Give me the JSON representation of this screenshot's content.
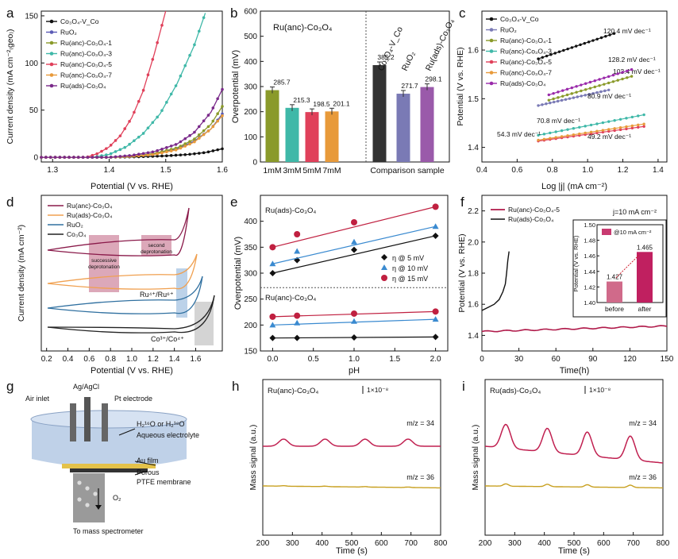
{
  "panel_labels": [
    "a",
    "b",
    "c",
    "d",
    "e",
    "f",
    "g",
    "h",
    "i"
  ],
  "chart_data": [
    {
      "panel": "a",
      "type": "line",
      "xlabel": "Potential (V vs. RHE)",
      "ylabel": "Current density (mA cm⁻²₍geo₎)",
      "xlim": [
        1.28,
        1.6
      ],
      "ylim": [
        -5,
        155
      ],
      "xticks": [
        1.3,
        1.4,
        1.5,
        1.6
      ],
      "yticks": [
        0,
        50,
        100,
        150
      ],
      "xtick_labels": [
        "1.3",
        "1.4",
        "1.5",
        "1.6"
      ],
      "ytick_labels": [
        "0",
        "50",
        "100",
        "150"
      ],
      "legend": [
        "Co₃O₄-V_Co",
        "RuO₂",
        "Ru(anc)-Co₃O₄-1",
        "Ru(anc)-Co₃O₄-3",
        "Ru(anc)-Co₃O₄-5",
        "Ru(anc)-Co₃O₄-7",
        "Ru(ads)-Co₃O₄"
      ],
      "series": [
        {
          "name": "Co₃O₄-V_Co",
          "color": "#111111",
          "x": [
            1.28,
            1.4,
            1.45,
            1.5,
            1.54,
            1.57,
            1.6
          ],
          "y": [
            0,
            0,
            0.5,
            1.5,
            3,
            5,
            9
          ]
        },
        {
          "name": "RuO₂",
          "color": "#5a5ab5",
          "x": [
            1.28,
            1.4,
            1.44,
            1.48,
            1.52,
            1.55,
            1.58,
            1.6
          ],
          "y": [
            0,
            0,
            1,
            4,
            9,
            17,
            30,
            46
          ]
        },
        {
          "name": "Ru(anc)-Co₃O₄-1",
          "color": "#8a9a2a",
          "x": [
            1.28,
            1.4,
            1.44,
            1.48,
            1.52,
            1.55,
            1.58,
            1.6
          ],
          "y": [
            0,
            0,
            1,
            4,
            10,
            19,
            35,
            54
          ]
        },
        {
          "name": "Ru(anc)-Co₃O₄-3",
          "color": "#3fb8a8",
          "x": [
            1.28,
            1.37,
            1.4,
            1.43,
            1.46,
            1.49,
            1.52,
            1.55,
            1.57
          ],
          "y": [
            0,
            0,
            3,
            11,
            25,
            46,
            78,
            118,
            153
          ]
        },
        {
          "name": "Ru(anc)-Co₃O₄-5",
          "color": "#e0405a",
          "x": [
            1.28,
            1.36,
            1.38,
            1.4,
            1.42,
            1.44,
            1.46,
            1.48,
            1.5
          ],
          "y": [
            0,
            0,
            4,
            11,
            23,
            42,
            70,
            110,
            155
          ]
        },
        {
          "name": "Ru(anc)-Co₃O₄-7",
          "color": "#e89a3a",
          "x": [
            1.28,
            1.4,
            1.44,
            1.48,
            1.52,
            1.55,
            1.58,
            1.6
          ],
          "y": [
            0,
            0,
            1,
            3,
            8,
            16,
            30,
            44
          ]
        },
        {
          "name": "Ru(ads)-Co₃O₄",
          "color": "#7a2a8a",
          "x": [
            1.28,
            1.4,
            1.44,
            1.48,
            1.52,
            1.55,
            1.58,
            1.6
          ],
          "y": [
            0,
            0,
            2,
            6,
            14,
            26,
            48,
            72
          ]
        }
      ]
    },
    {
      "panel": "b",
      "type": "bar",
      "title": "Ru(anc)-Co₃O₄",
      "ylabel": "Overpotential (mV)",
      "ylim": [
        0,
        600
      ],
      "yticks": [
        0,
        100,
        200,
        300,
        400,
        500,
        600
      ],
      "categories": [
        "1mM",
        "3mM",
        "5mM",
        "7mM",
        "Co₃O₄-V_Co",
        "RuO₂",
        "Ru(ads)-Co₃O₄"
      ],
      "values": [
        285.7,
        215.3,
        198.5,
        201.1,
        385.2,
        271.7,
        298.1
      ],
      "value_labels": [
        "285.7",
        "215.3",
        "198.5",
        "201.1",
        "385.2",
        "271.7",
        "298.1"
      ],
      "colors": [
        "#8a9a2a",
        "#3fb8a8",
        "#e0405a",
        "#e89a3a",
        "#333333",
        "#7a7ab5",
        "#9a5aaa"
      ],
      "xcategory_labels": [
        "1mM",
        "3mM",
        "5mM",
        "7mM"
      ],
      "comparison_label": "Comparison sample",
      "rotated_labels": [
        "Co₃O₄-V_Co",
        "RuO₂",
        "Ru(ads)-Co₃O₄"
      ]
    },
    {
      "panel": "c",
      "type": "line",
      "xlabel": "Log |j| (mA cm⁻²)",
      "ylabel": "Potential (V vs. RHE)",
      "xlim": [
        0.4,
        1.45
      ],
      "ylim": [
        1.37,
        1.68
      ],
      "xticks": [
        0.4,
        0.6,
        0.8,
        1.0,
        1.2,
        1.4
      ],
      "yticks": [
        1.4,
        1.5,
        1.6
      ],
      "legend": [
        "Co₃O₄-V_Co",
        "RuO₂",
        "Ru(anc)-Co₃O₄-1",
        "Ru(anc)-Co₃O₄-3",
        "Ru(anc)-Co₃O₄-5",
        "Ru(anc)-Co₃O₄-7",
        "Ru(ads)-Co₃O₄"
      ],
      "series": [
        {
          "name": "Co₃O₄-V_Co",
          "color": "#111111",
          "x": [
            0.72,
            1.15
          ],
          "y": [
            1.582,
            1.634
          ],
          "slope": "120.4 mV dec⁻¹"
        },
        {
          "name": "RuO₂",
          "color": "#7a7ab5",
          "x": [
            0.72,
            1.12
          ],
          "y": [
            1.486,
            1.518
          ],
          "slope": "80.9 mV dec⁻¹"
        },
        {
          "name": "Ru(anc)-Co₃O₄-1",
          "color": "#8a9a2a",
          "x": [
            0.78,
            1.25
          ],
          "y": [
            1.497,
            1.546
          ],
          "slope": "103.4 mV dec⁻¹"
        },
        {
          "name": "Ru(anc)-Co₃O₄-3",
          "color": "#3fb8a8",
          "x": [
            0.72,
            1.32
          ],
          "y": [
            1.425,
            1.467
          ],
          "slope": "70.8 mV dec⁻¹"
        },
        {
          "name": "Ru(anc)-Co₃O₄-5",
          "color": "#e0405a",
          "x": [
            0.72,
            1.32
          ],
          "y": [
            1.413,
            1.443
          ],
          "slope": "49.2 mV dec⁻¹"
        },
        {
          "name": "Ru(anc)-Co₃O₄-7",
          "color": "#e89a3a",
          "x": [
            0.72,
            1.32
          ],
          "y": [
            1.415,
            1.448
          ],
          "slope": "54.3 mV dec⁻¹"
        },
        {
          "name": "Ru(ads)-Co₃O₄",
          "color": "#9a2aaa",
          "x": [
            0.78,
            1.25
          ],
          "y": [
            1.508,
            1.56
          ],
          "slope": "128.2 mV dec⁻¹"
        }
      ]
    },
    {
      "panel": "d",
      "type": "line",
      "xlabel": "Potential (V vs. RHE)",
      "ylabel": "Current density (mA cm⁻²)",
      "xlim": [
        0.15,
        1.85
      ],
      "xticks": [
        0.2,
        0.4,
        0.6,
        0.8,
        1.0,
        1.2,
        1.4,
        1.6
      ],
      "legend": [
        "Ru(anc)-Co₃O₄",
        "Ru(ads)-Co₃O₄",
        "RuO₂",
        "Co₃O₄"
      ],
      "annotations": [
        "successive deprotonation",
        "second deprotonation",
        "Ru⁴⁺/Ru⁶⁺",
        "Co³⁺/Co⁴⁺"
      ]
    },
    {
      "panel": "e",
      "type": "scatter",
      "xlabel": "pH",
      "ylabel": "Overpotential (mV)",
      "xlim": [
        -0.15,
        2.15
      ],
      "ylim": [
        150,
        450
      ],
      "xticks": [
        0.0,
        0.5,
        1.0,
        1.5,
        2.0
      ],
      "yticks": [
        150,
        200,
        250,
        300,
        350,
        400
      ],
      "group_labels": [
        "Ru(ads)-Co₃O₄",
        "Ru(anc)-Co₃O₄"
      ],
      "legend": [
        "η @ 5 mV",
        "η @ 10 mV",
        "η @ 15 mV"
      ],
      "x": [
        0,
        0.3,
        1.0,
        2.0
      ],
      "series": [
        {
          "name": "ads η@5",
          "color": "#111111",
          "values": [
            300,
            325,
            345,
            372
          ]
        },
        {
          "name": "ads η@10",
          "color": "#3a8ad0",
          "values": [
            318,
            342,
            360,
            390
          ]
        },
        {
          "name": "ads η@15",
          "color": "#c02040",
          "values": [
            350,
            375,
            398,
            428
          ]
        },
        {
          "name": "anc η@5",
          "color": "#111111",
          "values": [
            175,
            175,
            176,
            177
          ]
        },
        {
          "name": "anc η@10",
          "color": "#3a8ad0",
          "values": [
            200,
            204,
            207,
            211
          ]
        },
        {
          "name": "anc η@15",
          "color": "#c02040",
          "values": [
            216,
            218,
            222,
            226
          ]
        }
      ]
    },
    {
      "panel": "f",
      "type": "line",
      "xlabel": "Time(h)",
      "ylabel": "Potential (V vs. RHE)",
      "xlim": [
        0,
        150
      ],
      "ylim": [
        1.3,
        2.3
      ],
      "xticks": [
        0,
        30,
        60,
        90,
        120,
        150
      ],
      "yticks": [
        1.4,
        1.6,
        1.8,
        2.0,
        2.2
      ],
      "note": "j=10 mA cm⁻²",
      "legend": [
        "Ru(anc)-Co₃O₄-5",
        "Ru(ads)-Co₃O₄"
      ],
      "inset": {
        "ylabel": "Potential (V vs. RHE)",
        "ylim": [
          1.4,
          1.5
        ],
        "yticks": [
          1.4,
          1.42,
          1.44,
          1.46,
          1.48,
          1.5
        ],
        "legend": "@10 mA cm⁻²",
        "categories": [
          "before",
          "after"
        ],
        "values": [
          1.427,
          1.465
        ],
        "value_labels": [
          "1.427",
          "1.465"
        ]
      }
    },
    {
      "panel": "h",
      "type": "line",
      "title": "Ru(anc)-Co₃O₄",
      "xlabel": "Time (s)",
      "ylabel": "Mass signal (a.u.)",
      "xlim": [
        200,
        800
      ],
      "xticks": [
        200,
        300,
        400,
        500,
        600,
        700,
        800
      ],
      "scale_bar": "1×10⁻⁸",
      "traces": [
        "m/z = 34",
        "m/z = 36"
      ]
    },
    {
      "panel": "i",
      "type": "line",
      "title": "Ru(ads)-Co₃O₄",
      "xlabel": "Time (s)",
      "ylabel": "Mass signal (a.u.)",
      "xlim": [
        200,
        800
      ],
      "xticks": [
        200,
        300,
        400,
        500,
        600,
        700,
        800
      ],
      "scale_bar": "1×10⁻⁸",
      "traces": [
        "m/z = 34",
        "m/z = 36"
      ]
    }
  ],
  "schematic_g": {
    "labels": [
      "Air inlet",
      "Ag/AgCl",
      "Pt electrode",
      "H₂¹⁶O or H₂¹⁸O",
      "Aqueous electrolyte",
      "Au film",
      "Porous",
      "PTFE membrane",
      "O₂",
      "To mass spectrometer"
    ]
  }
}
